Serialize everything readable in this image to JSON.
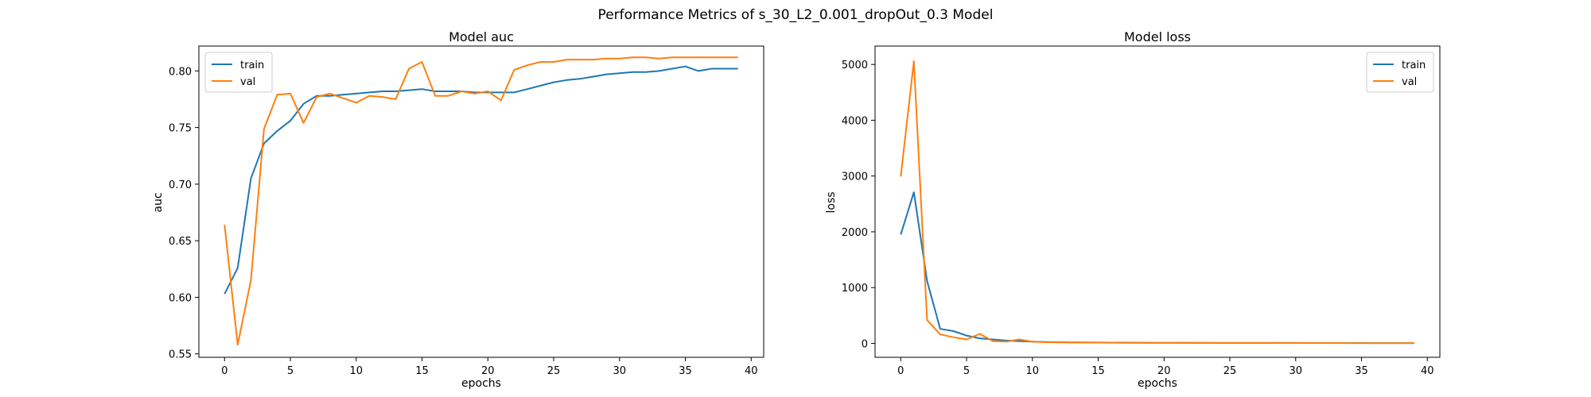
{
  "figure": {
    "suptitle": "Performance Metrics of s_30_L2_0.001_dropOut_0.3 Model"
  },
  "colors": {
    "train": "#1f77b4",
    "val": "#ff7f0e",
    "axis": "#000000"
  },
  "chart_data": [
    {
      "type": "line",
      "title": "Model auc",
      "xlabel": "epochs",
      "ylabel": "auc",
      "xlim": [
        -1.95,
        40.95
      ],
      "ylim": [
        0.547,
        0.822
      ],
      "xticks": [
        0,
        5,
        10,
        15,
        20,
        25,
        30,
        35,
        40
      ],
      "yticks": [
        0.55,
        0.6,
        0.65,
        0.7,
        0.75,
        0.8
      ],
      "ytick_labels": [
        "0.55",
        "0.60",
        "0.65",
        "0.70",
        "0.75",
        "0.80"
      ],
      "grid": false,
      "legend": "top-left",
      "x": [
        0,
        1,
        2,
        3,
        4,
        5,
        6,
        7,
        8,
        9,
        10,
        11,
        12,
        13,
        14,
        15,
        16,
        17,
        18,
        19,
        20,
        21,
        22,
        23,
        24,
        25,
        26,
        27,
        28,
        29,
        30,
        31,
        32,
        33,
        34,
        35,
        36,
        37,
        38,
        39
      ],
      "series": [
        {
          "name": "train",
          "color_key": "train",
          "values": [
            0.603,
            0.626,
            0.705,
            0.736,
            0.747,
            0.756,
            0.771,
            0.778,
            0.778,
            0.779,
            0.78,
            0.781,
            0.782,
            0.782,
            0.783,
            0.784,
            0.782,
            0.782,
            0.782,
            0.781,
            0.781,
            0.781,
            0.781,
            0.784,
            0.787,
            0.79,
            0.792,
            0.793,
            0.795,
            0.797,
            0.798,
            0.799,
            0.799,
            0.8,
            0.802,
            0.804,
            0.8,
            0.802,
            0.802,
            0.802
          ]
        },
        {
          "name": "val",
          "color_key": "val",
          "values": [
            0.664,
            0.558,
            0.615,
            0.749,
            0.779,
            0.78,
            0.754,
            0.777,
            0.78,
            0.776,
            0.772,
            0.778,
            0.777,
            0.775,
            0.802,
            0.808,
            0.778,
            0.778,
            0.782,
            0.78,
            0.782,
            0.774,
            0.801,
            0.805,
            0.808,
            0.808,
            0.81,
            0.81,
            0.81,
            0.811,
            0.811,
            0.812,
            0.812,
            0.811,
            0.812,
            0.812,
            0.812,
            0.812,
            0.812,
            0.812
          ]
        }
      ]
    },
    {
      "type": "line",
      "title": "Model loss",
      "xlabel": "epochs",
      "ylabel": "loss",
      "xlim": [
        -1.95,
        40.95
      ],
      "ylim": [
        -250,
        5330
      ],
      "xticks": [
        0,
        5,
        10,
        15,
        20,
        25,
        30,
        35,
        40
      ],
      "yticks": [
        0,
        1000,
        2000,
        3000,
        4000,
        5000
      ],
      "ytick_labels": [
        "0",
        "1000",
        "2000",
        "3000",
        "4000",
        "5000"
      ],
      "grid": false,
      "legend": "top-right",
      "x": [
        0,
        1,
        2,
        3,
        4,
        5,
        6,
        7,
        8,
        9,
        10,
        11,
        12,
        13,
        14,
        15,
        16,
        17,
        18,
        19,
        20,
        21,
        22,
        23,
        24,
        25,
        26,
        27,
        28,
        29,
        30,
        31,
        32,
        33,
        34,
        35,
        36,
        37,
        38,
        39
      ],
      "series": [
        {
          "name": "train",
          "color_key": "train",
          "values": [
            1950,
            2710,
            1120,
            260,
            220,
            140,
            90,
            70,
            50,
            40,
            30,
            25,
            20,
            18,
            16,
            15,
            14,
            13,
            12,
            11,
            10,
            10,
            9,
            9,
            8,
            8,
            8,
            7,
            7,
            7,
            7,
            6,
            6,
            6,
            6,
            6,
            5,
            5,
            5,
            5
          ]
        },
        {
          "name": "val",
          "color_key": "val",
          "values": [
            2990,
            5060,
            420,
            160,
            110,
            70,
            170,
            40,
            30,
            70,
            30,
            20,
            18,
            16,
            14,
            13,
            12,
            11,
            10,
            10,
            9,
            9,
            8,
            8,
            8,
            7,
            7,
            7,
            7,
            6,
            6,
            6,
            6,
            6,
            5,
            5,
            5,
            5,
            5,
            5
          ]
        }
      ]
    }
  ]
}
